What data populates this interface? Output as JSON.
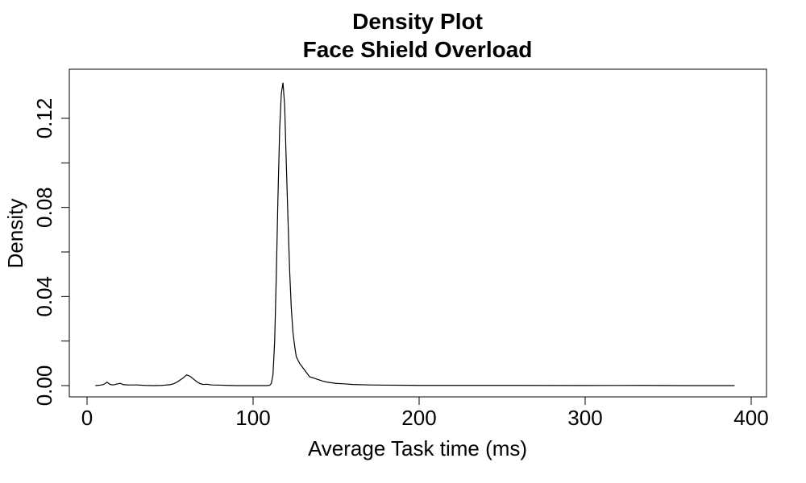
{
  "chart_data": {
    "type": "line",
    "title": "Density Plot",
    "subtitle": "Face Shield Overload",
    "xlabel": "Average Task time (ms)",
    "ylabel": "Density",
    "xlim": [
      0,
      400
    ],
    "ylim": [
      0,
      0.14
    ],
    "x_ticks": [
      "0",
      "100",
      "200",
      "300",
      "400"
    ],
    "y_ticks": [
      "0.00",
      "0.04",
      "0.08",
      "0.12"
    ],
    "grid": false,
    "series": [
      {
        "x": [
          5,
          8,
          10,
          12,
          14,
          16,
          18,
          20,
          22,
          25,
          30,
          35,
          40,
          45,
          50,
          52,
          54,
          56,
          58,
          60,
          62,
          64,
          66,
          68,
          70,
          72,
          75,
          80,
          85,
          90,
          95,
          100,
          105,
          108,
          110,
          111,
          112,
          113,
          114,
          115,
          116,
          117,
          118,
          119,
          120,
          121,
          122,
          123,
          124,
          125,
          126,
          128,
          130,
          132,
          134,
          136,
          138,
          140,
          142,
          145,
          150,
          155,
          160,
          170,
          180,
          200,
          250,
          300,
          335,
          360,
          390
        ],
        "y": [
          0,
          0.0002,
          0.0005,
          0.0015,
          0.0005,
          0.0003,
          0.0007,
          0.001,
          0.0004,
          0.0003,
          0.0003,
          0.0001,
          0,
          0.0001,
          0.0004,
          0.0008,
          0.0015,
          0.0025,
          0.0035,
          0.0048,
          0.0042,
          0.003,
          0.0018,
          0.0009,
          0.0005,
          0.0006,
          0.0003,
          0.0002,
          0.0001,
          0,
          0,
          0,
          0,
          0,
          0.0001,
          0.001,
          0.005,
          0.02,
          0.05,
          0.085,
          0.115,
          0.131,
          0.136,
          0.126,
          0.1,
          0.075,
          0.052,
          0.035,
          0.024,
          0.018,
          0.013,
          0.01,
          0.008,
          0.006,
          0.004,
          0.0035,
          0.003,
          0.0025,
          0.002,
          0.0015,
          0.001,
          0.0008,
          0.0005,
          0.0003,
          0.0002,
          0.0001,
          0.0001,
          5e-05,
          0.0001,
          0,
          0
        ]
      }
    ]
  }
}
